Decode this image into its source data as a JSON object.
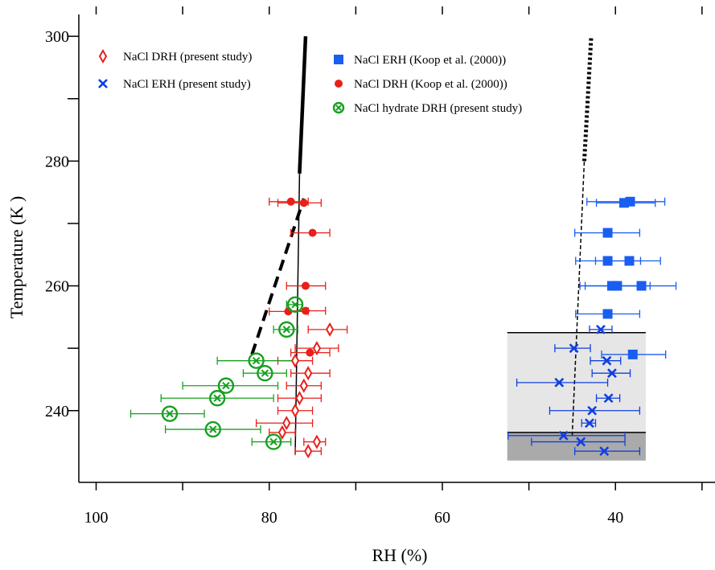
{
  "chart_data": {
    "type": "scatter",
    "xlabel": "RH (%)",
    "ylabel": "Temperature (K )",
    "x_reversed": true,
    "xlim": [
      102,
      28.5
    ],
    "ylim": [
      228.5,
      303.5
    ],
    "xticks": [
      100,
      80,
      60,
      40
    ],
    "yticks": [
      240,
      260,
      280,
      300
    ],
    "grid": false,
    "colors": {
      "red": "#e8201a",
      "blue": "#1040e0",
      "blue_marker": "#1a5ef0",
      "green": "#17a020",
      "shade_light": "#e6e6e6",
      "shade_dark": "#aaaaaa"
    },
    "legend": {
      "left": [
        {
          "label": "NaCl DRH (present study)",
          "marker": "open-diamond",
          "color": "red"
        },
        {
          "label": "NaCl ERH (present study)",
          "marker": "x",
          "color": "blue"
        }
      ],
      "right": [
        {
          "label": "NaCl ERH  (Koop et al. (2000))",
          "marker": "filled-square",
          "color": "blue_marker"
        },
        {
          "label": "NaCl DRH (Koop et al. (2000))",
          "marker": "filled-circle",
          "color": "red"
        },
        {
          "label": "NaCl hydrate DRH (present study)",
          "marker": "circled-x",
          "color": "green"
        }
      ]
    },
    "shaded_regions": [
      {
        "x": [
          52.5,
          36.5
        ],
        "y": [
          236.5,
          252.5
        ],
        "fill": "shade_light"
      },
      {
        "x": [
          52.5,
          36.5
        ],
        "y": [
          232.0,
          236.5
        ],
        "fill": "shade_dark"
      }
    ],
    "lines": [
      {
        "points": [
          [
            77.0,
            233
          ],
          [
            76.5,
            278
          ]
        ],
        "style": "solid",
        "width": 1.5
      },
      {
        "points": [
          [
            76.5,
            278
          ],
          [
            75.8,
            300
          ]
        ],
        "style": "solid",
        "width": 4.5
      },
      {
        "points": [
          [
            82.0,
            249
          ],
          [
            76.0,
            274
          ]
        ],
        "style": "dashed",
        "width": 4
      },
      {
        "points": [
          [
            45.0,
            236
          ],
          [
            43.6,
            280
          ]
        ],
        "style": "dashed",
        "width": 1.5
      },
      {
        "points": [
          [
            43.6,
            280
          ],
          [
            42.8,
            300
          ]
        ],
        "style": "dotted",
        "width": 5
      }
    ],
    "series": [
      {
        "name": "NaCl DRH (present study)",
        "marker": "open-diamond",
        "color": "red",
        "points": [
          {
            "x": 73.0,
            "y": 253.0,
            "err": [
              71.0,
              75.5
            ]
          },
          {
            "x": 74.5,
            "y": 250.0,
            "err": [
              72.0,
              77.0
            ]
          },
          {
            "x": 77.0,
            "y": 248.0,
            "err": [
              75.0,
              79.0
            ]
          },
          {
            "x": 75.5,
            "y": 246.0,
            "err": [
              73.0,
              77.5
            ]
          },
          {
            "x": 76.0,
            "y": 244.0,
            "err": [
              74.0,
              78.0
            ]
          },
          {
            "x": 76.5,
            "y": 242.0,
            "err": [
              74.0,
              79.0
            ]
          },
          {
            "x": 77.0,
            "y": 240.0,
            "err": [
              75.0,
              79.0
            ]
          },
          {
            "x": 78.0,
            "y": 238.0,
            "err": [
              75.0,
              81.5
            ]
          },
          {
            "x": 78.5,
            "y": 236.5,
            "err": [
              77.0,
              80.0
            ]
          },
          {
            "x": 74.5,
            "y": 235.0,
            "err": [
              73.5,
              76.0
            ]
          },
          {
            "x": 75.5,
            "y": 233.5,
            "err": [
              74.0,
              77.0
            ]
          }
        ]
      },
      {
        "name": "NaCl ERH (present study)",
        "marker": "x",
        "color": "blue",
        "points": [
          {
            "x": 41.7,
            "y": 253.0,
            "err": [
              40.4,
              43.0
            ]
          },
          {
            "x": 44.8,
            "y": 250.0,
            "err": [
              42.9,
              47.0
            ]
          },
          {
            "x": 41.0,
            "y": 248.0,
            "err": [
              39.4,
              42.9
            ]
          },
          {
            "x": 40.4,
            "y": 246.0,
            "err": [
              38.3,
              42.7
            ]
          },
          {
            "x": 46.5,
            "y": 244.5,
            "err": [
              40.9,
              51.4
            ]
          },
          {
            "x": 40.8,
            "y": 242.0,
            "err": [
              39.5,
              42.2
            ]
          },
          {
            "x": 42.7,
            "y": 240.0,
            "err": [
              37.2,
              47.6
            ]
          },
          {
            "x": 43.0,
            "y": 238.0,
            "err": [
              42.3,
              43.9
            ]
          },
          {
            "x": 46.0,
            "y": 236.0,
            "err": [
              38.9,
              52.4
            ]
          },
          {
            "x": 44.0,
            "y": 235.0,
            "err": [
              38.9,
              49.7
            ]
          },
          {
            "x": 41.3,
            "y": 233.5,
            "err": [
              37.2,
              44.7
            ]
          }
        ]
      },
      {
        "name": "NaCl ERH  (Koop et al. (2000))",
        "marker": "filled-square",
        "color": "blue_marker",
        "points": [
          {
            "x": 38.3,
            "y": 273.5,
            "err": [
              34.3,
              43.3
            ]
          },
          {
            "x": 39.0,
            "y": 273.3,
            "err": [
              35.4,
              42.2
            ]
          },
          {
            "x": 40.9,
            "y": 268.5,
            "err": [
              37.2,
              44.7
            ]
          },
          {
            "x": 40.9,
            "y": 264.0,
            "err": [
              37.1,
              44.6
            ]
          },
          {
            "x": 38.4,
            "y": 264.0,
            "err": [
              34.8,
              42.3
            ]
          },
          {
            "x": 39.8,
            "y": 260.0,
            "err": [
              36.0,
              43.5
            ]
          },
          {
            "x": 40.4,
            "y": 260.0,
            "err": [
              36.5,
              44.1
            ]
          },
          {
            "x": 37.0,
            "y": 260.0,
            "err": [
              33.0,
              40.8
            ]
          },
          {
            "x": 40.9,
            "y": 255.5,
            "err": [
              37.2,
              44.6
            ]
          },
          {
            "x": 38.0,
            "y": 249.0,
            "err": [
              34.2,
              41.6
            ]
          }
        ]
      },
      {
        "name": "NaCl DRH (Koop et al. (2000))",
        "marker": "filled-circle",
        "color": "red",
        "points": [
          {
            "x": 76.0,
            "y": 273.3,
            "err": [
              74.0,
              79.0
            ]
          },
          {
            "x": 77.5,
            "y": 273.5,
            "err": [
              75.5,
              80.0
            ]
          },
          {
            "x": 75.0,
            "y": 268.5,
            "err": [
              73.0,
              77.5
            ]
          },
          {
            "x": 75.8,
            "y": 260.0,
            "err": [
              73.5,
              78.0
            ]
          },
          {
            "x": 75.8,
            "y": 256.0,
            "err": [
              73.5,
              78.0
            ]
          },
          {
            "x": 77.8,
            "y": 255.9,
            "err": [
              75.5,
              80.0
            ]
          },
          {
            "x": 75.3,
            "y": 249.3,
            "err": [
              73.0,
              77.5
            ]
          }
        ]
      },
      {
        "name": "NaCl hydrate DRH (present study)",
        "marker": "circled-x",
        "color": "green",
        "points": [
          {
            "x": 77.0,
            "y": 257.0,
            "err": [
              76.2,
              78.0
            ]
          },
          {
            "x": 78.0,
            "y": 253.0,
            "err": [
              76.7,
              79.5
            ]
          },
          {
            "x": 81.5,
            "y": 248.0,
            "err": [
              77.0,
              86.0
            ]
          },
          {
            "x": 80.5,
            "y": 246.0,
            "err": [
              78.0,
              83.0
            ]
          },
          {
            "x": 85.0,
            "y": 244.0,
            "err": [
              79.0,
              90.0
            ]
          },
          {
            "x": 86.0,
            "y": 242.0,
            "err": [
              79.5,
              92.5
            ]
          },
          {
            "x": 91.5,
            "y": 239.5,
            "err": [
              87.5,
              96.0
            ]
          },
          {
            "x": 86.5,
            "y": 237.0,
            "err": [
              81.0,
              92.0
            ]
          },
          {
            "x": 79.5,
            "y": 235.0,
            "err": [
              77.5,
              82.0
            ]
          }
        ]
      }
    ]
  }
}
